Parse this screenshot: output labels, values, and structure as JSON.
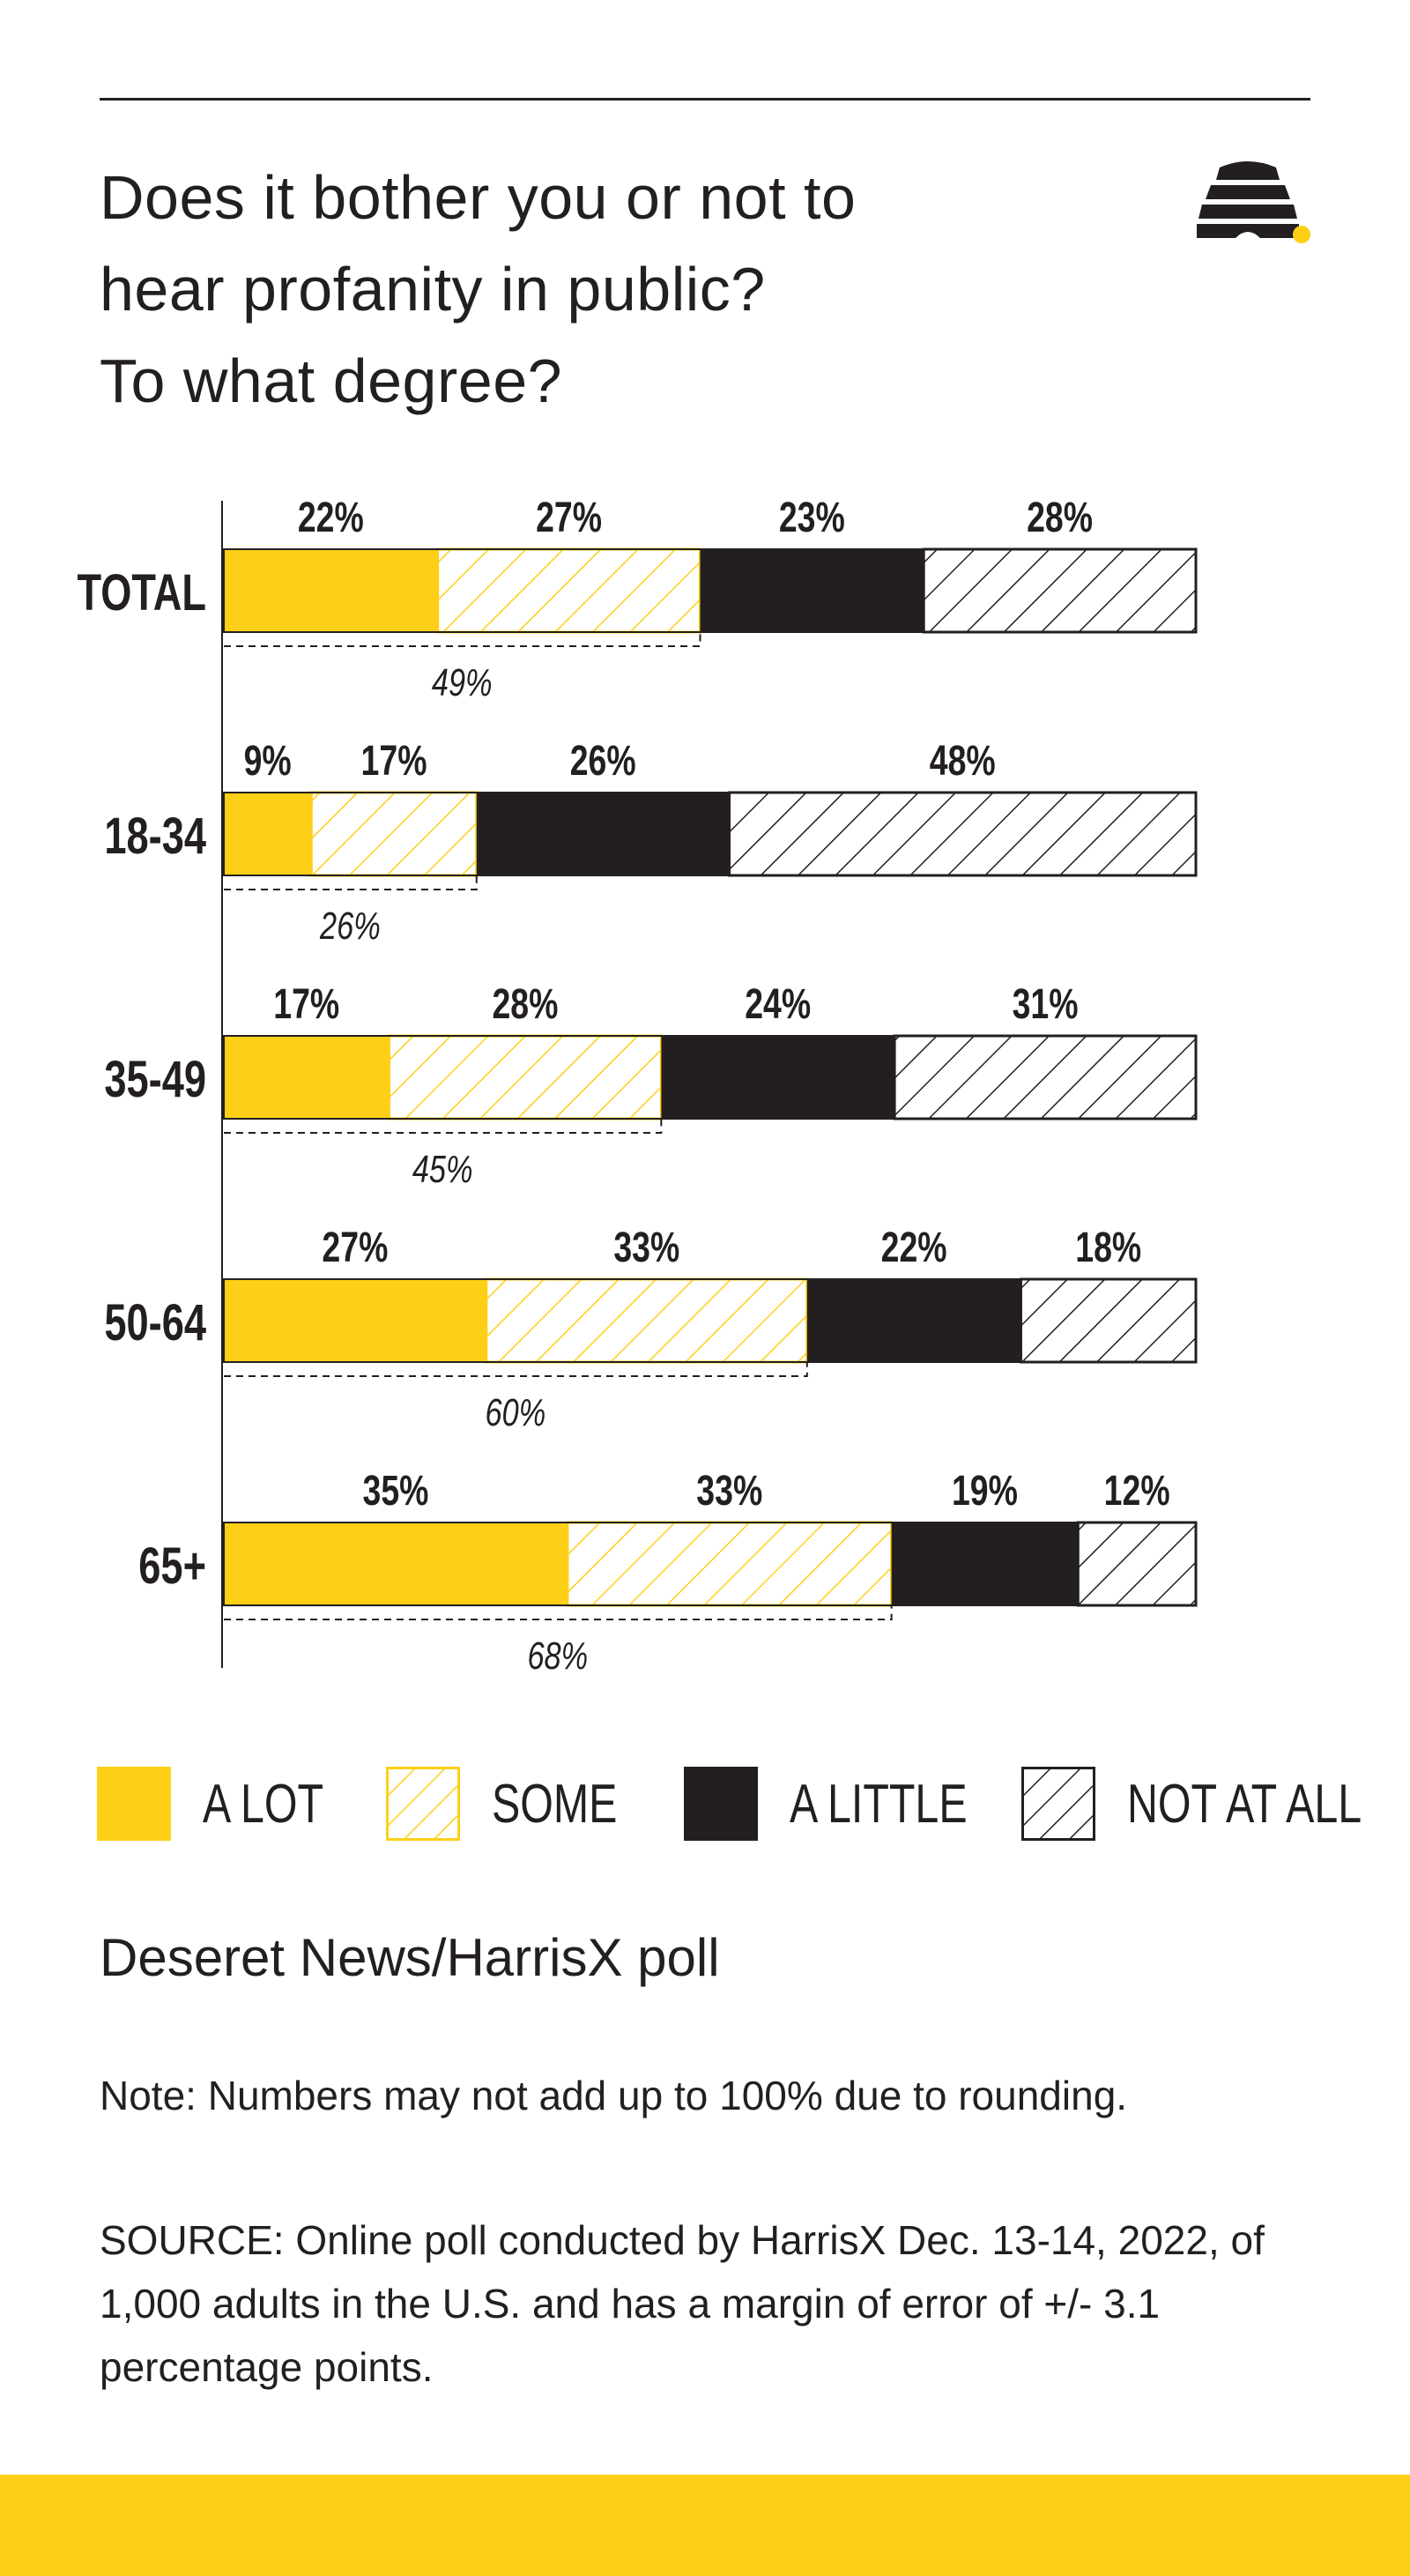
{
  "title_lines": [
    "Does it bother you or not to",
    "hear profanity in public?",
    "To what degree?"
  ],
  "subtitle": "Deseret News/HarrisX poll",
  "note": "Note: Numbers may not add up to 100% due to rounding.",
  "source": "SOURCE: Online poll conducted by HarrisX Dec. 13-14, 2022, of 1,000 adults in the U.S. and has a margin of error of +/- 3.1 percentage points.",
  "colors": {
    "a_lot": "#fdd017",
    "some_hatch": "#fdd017",
    "a_little": "#231f20",
    "not_at_all_hatch": "#231f20",
    "footer": "#fdd017"
  },
  "chart_data": {
    "type": "bar",
    "orientation": "horizontal",
    "stacked": true,
    "categories": [
      "TOTAL",
      "18-34",
      "35-49",
      "50-64",
      "65+"
    ],
    "series": [
      {
        "name": "A LOT",
        "values": [
          22,
          9,
          17,
          27,
          35
        ],
        "labels": [
          "22%",
          "9%",
          "17%",
          "27%",
          "35%"
        ]
      },
      {
        "name": "SOME",
        "values": [
          27,
          17,
          28,
          33,
          33
        ],
        "labels": [
          "27%",
          "17%",
          "28%",
          "33%",
          "33%"
        ]
      },
      {
        "name": "A LITTLE",
        "values": [
          23,
          26,
          24,
          22,
          19
        ],
        "labels": [
          "23%",
          "26%",
          "24%",
          "22%",
          "19%"
        ]
      },
      {
        "name": "NOT AT ALL",
        "values": [
          28,
          48,
          31,
          18,
          12
        ],
        "labels": [
          "28%",
          "48%",
          "31%",
          "18%",
          "12%"
        ]
      }
    ],
    "bothered_totals": [
      49,
      26,
      45,
      60,
      68
    ],
    "bothered_labels": [
      "49%",
      "26%",
      "45%",
      "60%",
      "68%"
    ],
    "legend_position": "bottom"
  },
  "legend": [
    {
      "label": "A LOT",
      "style": "solid-yellow"
    },
    {
      "label": "SOME",
      "style": "hatch-yellow"
    },
    {
      "label": "A LITTLE",
      "style": "solid-black"
    },
    {
      "label": "NOT AT ALL",
      "style": "hatch-black"
    }
  ]
}
